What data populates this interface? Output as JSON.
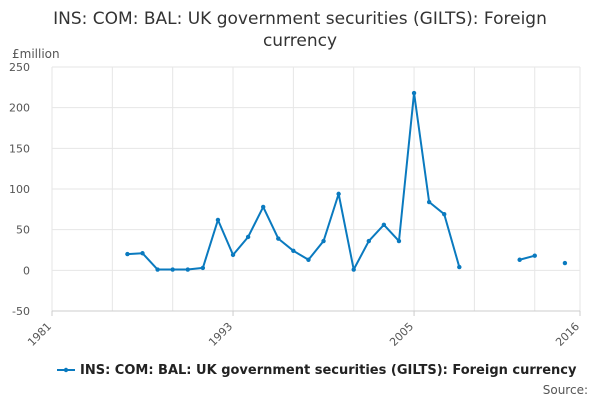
{
  "chart_data": {
    "type": "line",
    "title": "INS: COM: BAL: UK government securities (GILTS): Foreign currency",
    "unit_label": "£million",
    "x_tick_labels": [
      "1981",
      "1993",
      "2005",
      "2016"
    ],
    "y_tick_labels": [
      "-50",
      "0",
      "50",
      "100",
      "150",
      "200",
      "250"
    ],
    "xlim": [
      1981,
      2016
    ],
    "ylim": [
      -50,
      250
    ],
    "grid": true,
    "legend_position": "bottom",
    "series": [
      {
        "name": "INS: COM: BAL: UK government securities (GILTS): Foreign currency",
        "color": "#0a7abf",
        "x": [
          1986,
          1987,
          1988,
          1989,
          1990,
          1991,
          1992,
          1993,
          1994,
          1995,
          1996,
          1997,
          1998,
          1999,
          2000,
          2001,
          2002,
          2003,
          2004,
          2005,
          2006,
          2007,
          2008,
          2009,
          2010,
          2011,
          2012,
          2013,
          2014,
          2015
        ],
        "y": [
          20,
          21,
          1,
          1,
          1,
          3,
          62,
          19,
          41,
          78,
          39,
          24,
          13,
          36,
          94,
          1,
          36,
          56,
          36,
          218,
          84,
          69,
          4,
          null,
          null,
          null,
          13,
          18,
          null,
          9
        ]
      }
    ],
    "source_label": "Source:"
  }
}
